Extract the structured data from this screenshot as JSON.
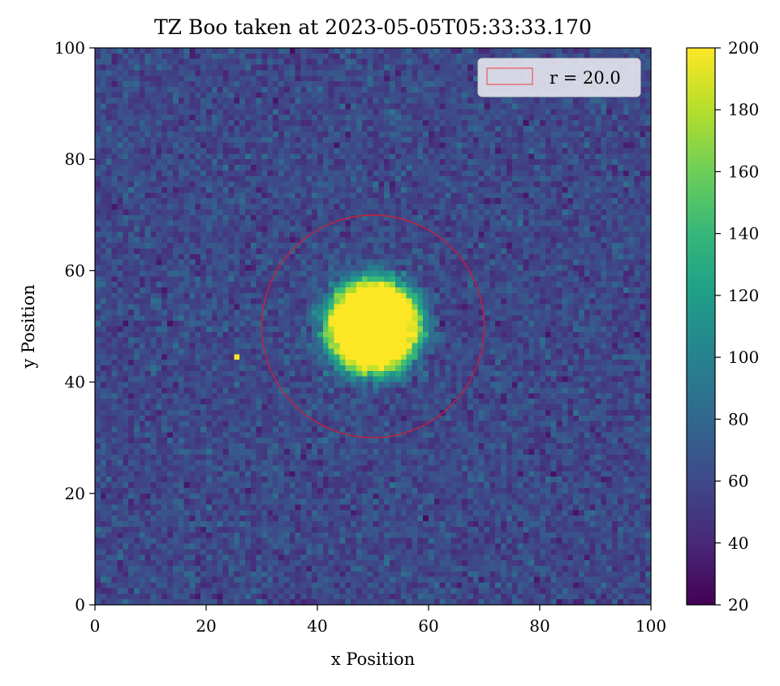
{
  "chart_data": {
    "type": "heatmap",
    "title": "TZ Boo taken at 2023-05-05T05:33:33.170",
    "xlabel": "x Position",
    "ylabel": "y Position",
    "xlim": [
      0,
      100
    ],
    "ylim": [
      0,
      100
    ],
    "x_ticks": [
      0,
      20,
      40,
      60,
      80,
      100
    ],
    "y_ticks": [
      0,
      20,
      40,
      60,
      80,
      100
    ],
    "colormap": "viridis",
    "color_range": [
      20,
      200
    ],
    "colorbar_ticks": [
      20,
      40,
      60,
      80,
      100,
      120,
      140,
      160,
      180,
      200
    ],
    "image": {
      "grid_size": 100,
      "background_level": 60,
      "background_noise": 14,
      "source": {
        "x": 50,
        "y": 50,
        "saturated_radius": 6,
        "halo_radius": 14,
        "peak": 200
      },
      "hot_pixel": {
        "x": 25.5,
        "y": 44.5,
        "value": 200
      }
    },
    "annotations": [
      {
        "type": "circle",
        "center": [
          50,
          50
        ],
        "radius": 20.0,
        "color": "#c8203a"
      }
    ],
    "legend": {
      "location": "upper right",
      "entries": [
        {
          "label": "r = 20.0",
          "edge_color": "#e8686e"
        }
      ]
    }
  }
}
